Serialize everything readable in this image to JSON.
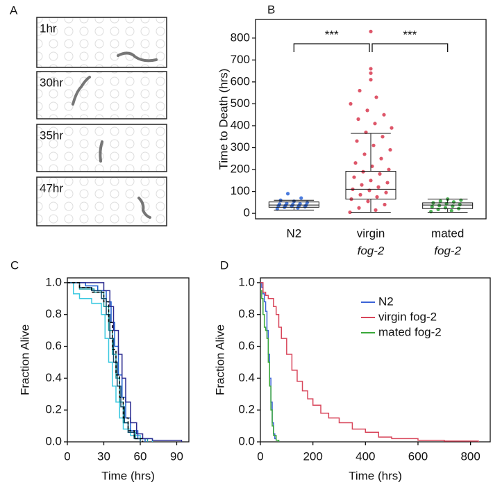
{
  "panel_a": {
    "panel": "A",
    "frames": [
      "1hr",
      "30hr",
      "35hr",
      "47hr"
    ]
  },
  "chart_data": [
    {
      "type": "box",
      "panel": "B",
      "y_label": "Time to Death (hrs)",
      "categories": [
        [
          "N2"
        ],
        [
          "virgin",
          "fog-2"
        ],
        [
          "mated",
          "fog-2"
        ]
      ],
      "colors": [
        "#2a64d8",
        "#d8384f",
        "#2ea236"
      ],
      "boxes": [
        {
          "low": 15,
          "q1": 28,
          "median": 38,
          "q3": 52,
          "high": 60,
          "points": [
            20,
            25,
            28,
            30,
            32,
            34,
            35,
            36,
            38,
            40,
            42,
            44,
            46,
            50,
            55,
            60,
            70,
            90
          ]
        },
        {
          "low": 5,
          "q1": 65,
          "median": 110,
          "q3": 192,
          "high": 365,
          "points": [
            5,
            15,
            25,
            40,
            55,
            65,
            75,
            85,
            95,
            105,
            110,
            120,
            130,
            140,
            150,
            165,
            180,
            190,
            200,
            215,
            230,
            250,
            270,
            290,
            310,
            330,
            350,
            370,
            390,
            410,
            430,
            450,
            470,
            500,
            530,
            560,
            610,
            640,
            660,
            830
          ]
        },
        {
          "low": 5,
          "q1": 22,
          "median": 38,
          "q3": 48,
          "high": 65,
          "points": [
            8,
            12,
            18,
            22,
            26,
            30,
            33,
            36,
            40,
            44,
            48,
            52,
            56,
            60,
            65
          ]
        }
      ],
      "annotations": [
        "***",
        "***"
      ],
      "ylim": [
        -25,
        885
      ],
      "yticks": [
        0,
        100,
        200,
        300,
        400,
        500,
        600,
        700,
        800
      ]
    },
    {
      "type": "line",
      "panel": "C",
      "x_label": "Time (hrs)",
      "y_label": "Fraction Alive",
      "step": true,
      "xlim": [
        0,
        100
      ],
      "xticks": [
        0,
        30,
        60,
        90
      ],
      "ylim": [
        0,
        1.03
      ],
      "yticks": [
        {
          "value": 0,
          "label": "0.0"
        },
        0.2,
        0.4,
        0.6,
        0.8,
        {
          "value": 1,
          "label": "1.0"
        }
      ],
      "series": [
        {
          "color": "#3ac8e0",
          "x": [
            0,
            5,
            10,
            20,
            28,
            31,
            34,
            37,
            40,
            43,
            46,
            52,
            60,
            70
          ],
          "values": [
            1,
            0.93,
            0.9,
            0.87,
            0.8,
            0.65,
            0.5,
            0.35,
            0.25,
            0.15,
            0.08,
            0.04,
            0.02,
            0
          ]
        },
        {
          "color": "#1a9aa0",
          "x": [
            0,
            10,
            22,
            30,
            34,
            37,
            40,
            43,
            46,
            50,
            56,
            66
          ],
          "values": [
            1,
            0.96,
            0.94,
            0.85,
            0.7,
            0.55,
            0.4,
            0.25,
            0.12,
            0.06,
            0.02,
            0
          ]
        },
        {
          "color": "#1a5fd0",
          "x": [
            0,
            15,
            25,
            32,
            36,
            39,
            42,
            45,
            48,
            52,
            58,
            64
          ],
          "values": [
            1,
            0.98,
            0.95,
            0.88,
            0.75,
            0.6,
            0.42,
            0.28,
            0.15,
            0.07,
            0.02,
            0
          ]
        },
        {
          "color": "#2a2a8f",
          "x": [
            0,
            20,
            30,
            35,
            38,
            42,
            45,
            48,
            52,
            57,
            62,
            70,
            94
          ],
          "values": [
            1,
            1,
            0.95,
            0.85,
            0.7,
            0.55,
            0.4,
            0.25,
            0.12,
            0.05,
            0.02,
            0.01,
            0
          ]
        },
        {
          "color": "#0f4a6a",
          "x": [
            0,
            10,
            20,
            28,
            32,
            35,
            38,
            41,
            44,
            47,
            50,
            55,
            60
          ],
          "values": [
            1,
            0.97,
            0.95,
            0.9,
            0.8,
            0.65,
            0.5,
            0.35,
            0.22,
            0.12,
            0.06,
            0.02,
            0
          ]
        },
        {
          "color": "#000000",
          "dashed": true,
          "x": [
            0,
            10,
            20,
            30,
            34,
            37,
            40,
            43,
            46,
            50,
            55,
            62
          ],
          "values": [
            1,
            0.97,
            0.94,
            0.88,
            0.75,
            0.58,
            0.42,
            0.28,
            0.15,
            0.07,
            0.02,
            0
          ]
        }
      ]
    },
    {
      "type": "line",
      "panel": "D",
      "x_label": "Time (hrs)",
      "y_label": "Fraction Alive",
      "step": true,
      "legend": "upper right",
      "xlim": [
        0,
        875
      ],
      "xticks": [
        0,
        200,
        400,
        600,
        800
      ],
      "ylim": [
        0,
        1.03
      ],
      "yticks": [
        {
          "value": 0,
          "label": "0.0"
        },
        0.2,
        0.4,
        0.6,
        0.8,
        {
          "value": 1,
          "label": "1.0"
        }
      ],
      "series": [
        {
          "name": "N2",
          "color": "#3b62d6",
          "x": [
            0,
            5,
            10,
            15,
            20,
            25,
            30,
            35,
            40,
            45,
            50,
            55,
            60,
            70
          ],
          "values": [
            1,
            0.97,
            0.93,
            0.88,
            0.82,
            0.7,
            0.55,
            0.4,
            0.25,
            0.12,
            0.05,
            0.02,
            0.01,
            0
          ]
        },
        {
          "name": "virgin fog-2",
          "color": "#d8455a",
          "x": [
            0,
            10,
            20,
            30,
            50,
            60,
            70,
            80,
            100,
            120,
            140,
            160,
            180,
            200,
            230,
            260,
            300,
            350,
            400,
            450,
            500,
            600,
            700,
            830
          ],
          "values": [
            1,
            0.94,
            0.92,
            0.9,
            0.85,
            0.8,
            0.72,
            0.65,
            0.55,
            0.45,
            0.38,
            0.32,
            0.27,
            0.23,
            0.18,
            0.15,
            0.12,
            0.08,
            0.06,
            0.03,
            0.02,
            0.01,
            0.005,
            0
          ]
        },
        {
          "name": "mated fog-2",
          "color": "#3aa83a",
          "x": [
            0,
            5,
            10,
            15,
            20,
            25,
            30,
            35,
            40,
            45,
            50,
            60,
            70
          ],
          "values": [
            0.95,
            0.9,
            0.8,
            0.72,
            0.7,
            0.65,
            0.5,
            0.35,
            0.2,
            0.1,
            0.04,
            0.01,
            0
          ]
        }
      ]
    }
  ]
}
